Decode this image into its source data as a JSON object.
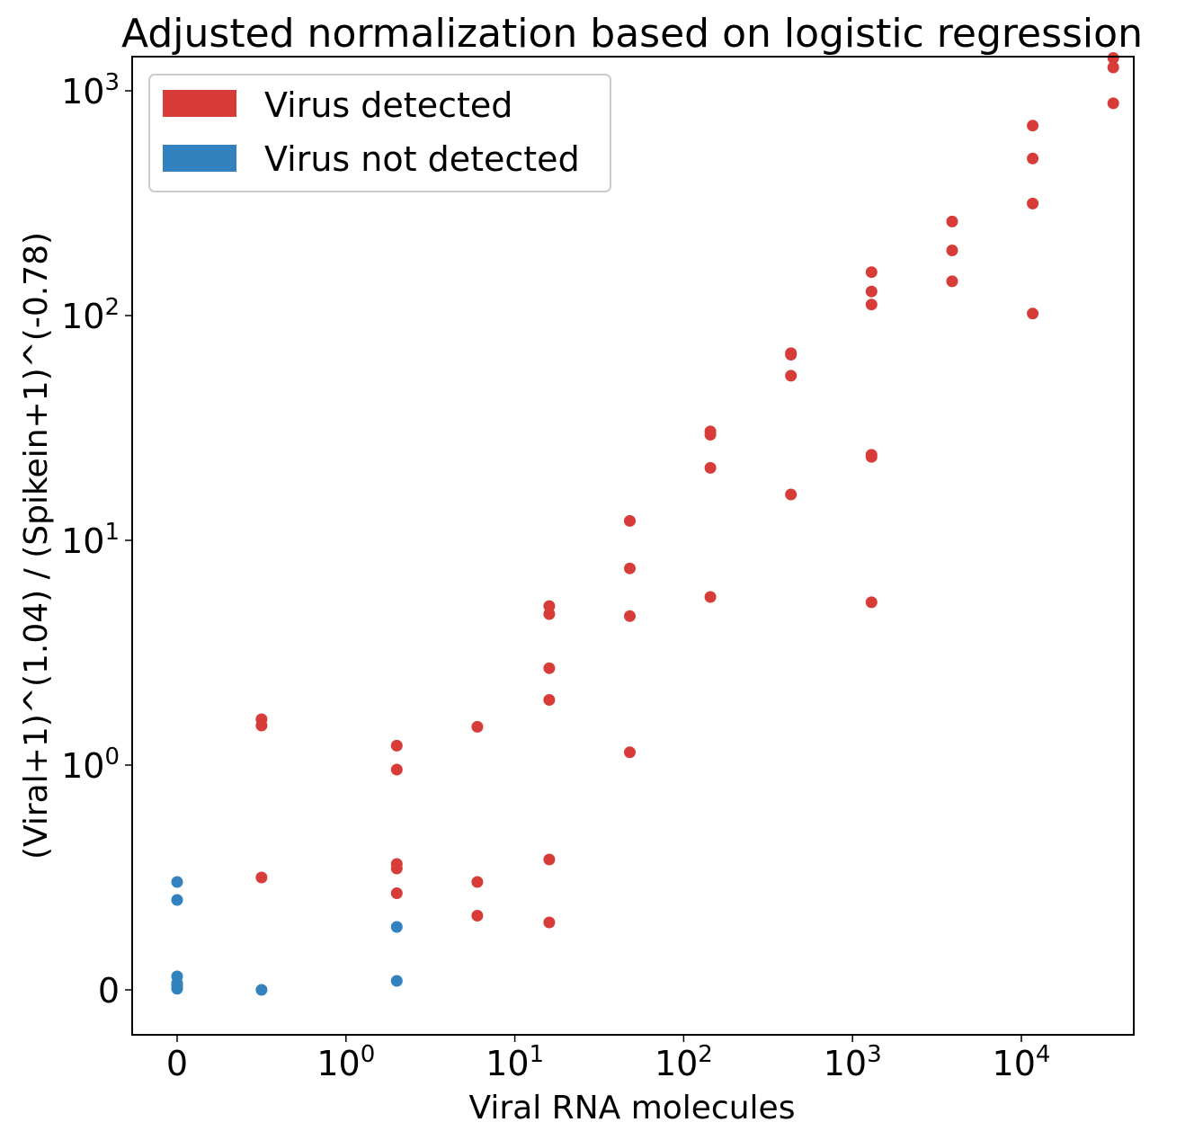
{
  "chart_data": {
    "type": "scatter",
    "title": "Adjusted normalization based on logistic regression",
    "xlabel": "Viral RNA molecules",
    "ylabel": "(Viral+1)^(1.04) / (Spikein+1)^(-0.78)",
    "xscale": "symlog",
    "yscale": "symlog",
    "xlim": [
      -0.27,
      90000
    ],
    "ylim": [
      -0.35,
      2000
    ],
    "xticks": [
      {
        "value": 0,
        "base": "0",
        "exp": ""
      },
      {
        "value": 1,
        "base": "10",
        "exp": "0"
      },
      {
        "value": 10,
        "base": "10",
        "exp": "1"
      },
      {
        "value": 100,
        "base": "10",
        "exp": "2"
      },
      {
        "value": 1000,
        "base": "10",
        "exp": "3"
      },
      {
        "value": 10000,
        "base": "10",
        "exp": "4"
      }
    ],
    "yticks": [
      {
        "value": 0,
        "base": "0",
        "exp": ""
      },
      {
        "value": 1,
        "base": "10",
        "exp": "0"
      },
      {
        "value": 10,
        "base": "10",
        "exp": "1"
      },
      {
        "value": 100,
        "base": "10",
        "exp": "2"
      },
      {
        "value": 1000,
        "base": "10",
        "exp": "3"
      }
    ],
    "legend": {
      "location": "upper-left",
      "entries": [
        {
          "label": "Virus detected",
          "color": "#d73c39"
        },
        {
          "label": "Virus not detected",
          "color": "#3282c0"
        }
      ]
    },
    "grid": false,
    "series": [
      {
        "name": "Virus detected",
        "color": "#d73c39",
        "points": [
          {
            "x": 0.5,
            "y": 1.6
          },
          {
            "x": 0.5,
            "y": 1.5
          },
          {
            "x": 0.5,
            "y": 0.5
          },
          {
            "x": 2,
            "y": 1.22
          },
          {
            "x": 2,
            "y": 0.98
          },
          {
            "x": 2,
            "y": 0.56
          },
          {
            "x": 2,
            "y": 0.54
          },
          {
            "x": 2,
            "y": 0.43
          },
          {
            "x": 6,
            "y": 1.48
          },
          {
            "x": 6,
            "y": 0.48
          },
          {
            "x": 6,
            "y": 0.33
          },
          {
            "x": 16,
            "y": 5.1
          },
          {
            "x": 16,
            "y": 4.7
          },
          {
            "x": 16,
            "y": 2.7
          },
          {
            "x": 16,
            "y": 1.95
          },
          {
            "x": 16,
            "y": 0.58
          },
          {
            "x": 16,
            "y": 0.3
          },
          {
            "x": 48,
            "y": 12.2
          },
          {
            "x": 48,
            "y": 7.5
          },
          {
            "x": 48,
            "y": 4.6
          },
          {
            "x": 48,
            "y": 1.14
          },
          {
            "x": 144,
            "y": 30.5
          },
          {
            "x": 144,
            "y": 29.5
          },
          {
            "x": 144,
            "y": 21
          },
          {
            "x": 144,
            "y": 5.6
          },
          {
            "x": 432,
            "y": 68
          },
          {
            "x": 432,
            "y": 67
          },
          {
            "x": 432,
            "y": 54
          },
          {
            "x": 432,
            "y": 16
          },
          {
            "x": 1296,
            "y": 156
          },
          {
            "x": 1296,
            "y": 128
          },
          {
            "x": 1296,
            "y": 112
          },
          {
            "x": 1296,
            "y": 24
          },
          {
            "x": 1296,
            "y": 23.5
          },
          {
            "x": 1296,
            "y": 5.3
          },
          {
            "x": 3888,
            "y": 262
          },
          {
            "x": 3888,
            "y": 195
          },
          {
            "x": 3888,
            "y": 142
          },
          {
            "x": 11664,
            "y": 700
          },
          {
            "x": 11664,
            "y": 500
          },
          {
            "x": 11664,
            "y": 315
          },
          {
            "x": 11664,
            "y": 102
          },
          {
            "x": 34992,
            "y": 1400
          },
          {
            "x": 34992,
            "y": 1270
          },
          {
            "x": 34992,
            "y": 880
          }
        ]
      },
      {
        "name": "Virus not detected",
        "color": "#3282c0",
        "points": [
          {
            "x": 0,
            "y": 0.48
          },
          {
            "x": 0,
            "y": 0.4
          },
          {
            "x": 0,
            "y": 0.06
          },
          {
            "x": 0,
            "y": 0.03
          },
          {
            "x": 0,
            "y": 0.02
          },
          {
            "x": 0,
            "y": 0.01
          },
          {
            "x": 0,
            "y": 0.005
          },
          {
            "x": 0.5,
            "y": 0.0
          },
          {
            "x": 2,
            "y": 0.28
          },
          {
            "x": 2,
            "y": 0.04
          }
        ]
      }
    ]
  }
}
